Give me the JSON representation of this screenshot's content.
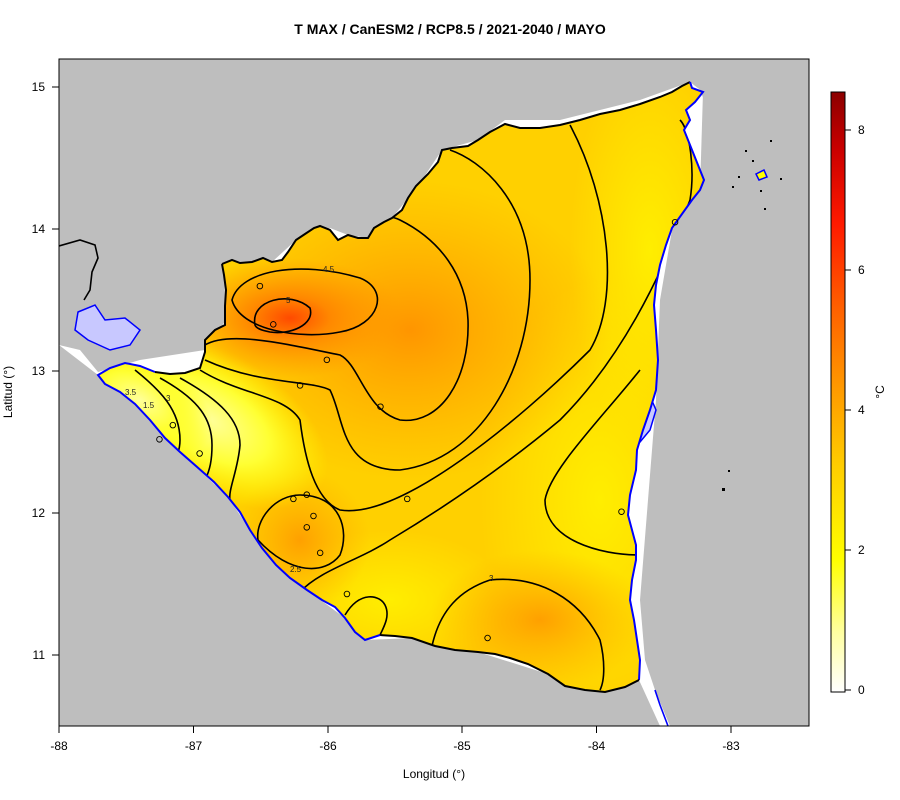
{
  "title": "T MAX / CanESM2 / RCP8.5 / 2021-2040 / MAYO",
  "x_axis": {
    "label": "Longitud (°)",
    "ticks": [
      "-88",
      "-87",
      "-86",
      "-85",
      "-84",
      "-83"
    ]
  },
  "y_axis": {
    "label": "Latitud (°)",
    "ticks": [
      "11",
      "12",
      "13",
      "14",
      "15"
    ]
  },
  "colorbar": {
    "unit": "°C",
    "ticks": [
      "0",
      "2",
      "4",
      "6",
      "8"
    ],
    "range": [
      0,
      8.6
    ],
    "colors": [
      "#ffffff",
      "#ffff00",
      "#ffcc00",
      "#ff8c00",
      "#ff3300",
      "#8b0000"
    ]
  },
  "colors": {
    "land_background": "#bebebe",
    "coastline": "#0000ff",
    "water": "#c8c8ff"
  },
  "contour_labels": [
    "4.5",
    "5",
    "3",
    "3",
    "2.5",
    "3.5",
    "1.5"
  ],
  "chart_data": {
    "type": "heatmap",
    "title": "T MAX / CanESM2 / RCP8.5 / 2021-2040 / MAYO",
    "xlabel": "Longitud (°)",
    "ylabel": "Latitud (°)",
    "xlim": [
      -88,
      -82.4
    ],
    "ylim": [
      10.5,
      15.2
    ],
    "zlim": [
      0,
      8.6
    ],
    "z_unit": "°C",
    "contour_levels": [
      1.5,
      2,
      2.5,
      3,
      3.5,
      4,
      4.5,
      5
    ],
    "stations": [
      {
        "lon": -86.5,
        "lat": 13.6
      },
      {
        "lon": -86.4,
        "lat": 13.33
      },
      {
        "lon": -86.0,
        "lat": 13.08
      },
      {
        "lon": -86.2,
        "lat": 12.9
      },
      {
        "lon": -85.6,
        "lat": 12.75
      },
      {
        "lon": -87.15,
        "lat": 12.62
      },
      {
        "lon": -87.25,
        "lat": 12.52
      },
      {
        "lon": -86.95,
        "lat": 12.42
      },
      {
        "lon": -86.25,
        "lat": 12.1
      },
      {
        "lon": -86.15,
        "lat": 12.13
      },
      {
        "lon": -86.1,
        "lat": 11.98
      },
      {
        "lon": -86.15,
        "lat": 11.9
      },
      {
        "lon": -86.05,
        "lat": 11.72
      },
      {
        "lon": -85.4,
        "lat": 12.1
      },
      {
        "lon": -85.85,
        "lat": 11.43
      },
      {
        "lon": -84.8,
        "lat": 11.12
      },
      {
        "lon": -83.8,
        "lat": 12.01
      },
      {
        "lon": -83.4,
        "lat": 14.05
      }
    ]
  }
}
